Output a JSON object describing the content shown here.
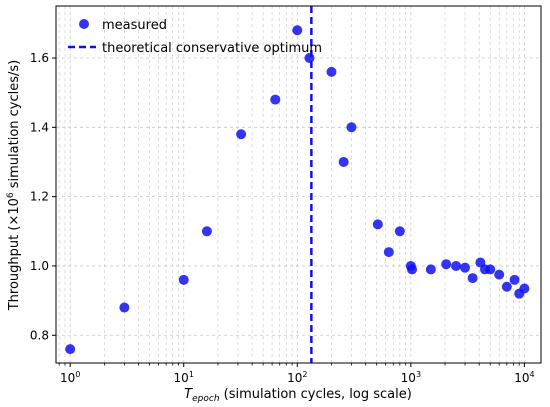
{
  "chart_data": {
    "type": "scatter",
    "x_scale": "log",
    "xlim": [
      0.75,
      14000
    ],
    "ylim": [
      0.72,
      1.75
    ],
    "grid": "both",
    "legend_placement": "top-left",
    "xlabel": {
      "main": "T",
      "sub": "epoch",
      "rest": " (simulation cycles, log scale)"
    },
    "ylabel": {
      "prefix": "Throughput (×10",
      "sup": "6",
      "suffix": " simulation cycles/s)"
    },
    "x_ticks": [
      {
        "value": 1,
        "base": "10",
        "exp": "0"
      },
      {
        "value": 10,
        "base": "10",
        "exp": "1"
      },
      {
        "value": 100,
        "base": "10",
        "exp": "2"
      },
      {
        "value": 1000,
        "base": "10",
        "exp": "3"
      },
      {
        "value": 10000,
        "base": "10",
        "exp": "4"
      }
    ],
    "y_ticks": [
      {
        "value": 0.8,
        "label": "0.8"
      },
      {
        "value": 1.0,
        "label": "1.0"
      },
      {
        "value": 1.2,
        "label": "1.2"
      },
      {
        "value": 1.4,
        "label": "1.4"
      },
      {
        "value": 1.6,
        "label": "1.6"
      }
    ],
    "series": [
      {
        "name": "measured",
        "kind": "scatter",
        "color": "#1010ee",
        "points": [
          {
            "x": 1,
            "y": 0.76
          },
          {
            "x": 3,
            "y": 0.88
          },
          {
            "x": 10,
            "y": 0.96
          },
          {
            "x": 16,
            "y": 1.1
          },
          {
            "x": 32,
            "y": 1.38
          },
          {
            "x": 64,
            "y": 1.48
          },
          {
            "x": 100,
            "y": 1.68
          },
          {
            "x": 128,
            "y": 1.6
          },
          {
            "x": 200,
            "y": 1.56
          },
          {
            "x": 256,
            "y": 1.3
          },
          {
            "x": 300,
            "y": 1.4
          },
          {
            "x": 512,
            "y": 1.12
          },
          {
            "x": 640,
            "y": 1.04
          },
          {
            "x": 800,
            "y": 1.1
          },
          {
            "x": 1000,
            "y": 1.0
          },
          {
            "x": 1024,
            "y": 0.99
          },
          {
            "x": 1500,
            "y": 0.99
          },
          {
            "x": 2048,
            "y": 1.005
          },
          {
            "x": 2500,
            "y": 1.0
          },
          {
            "x": 3000,
            "y": 0.995
          },
          {
            "x": 3500,
            "y": 0.965
          },
          {
            "x": 4096,
            "y": 1.01
          },
          {
            "x": 4500,
            "y": 0.99
          },
          {
            "x": 5000,
            "y": 0.99
          },
          {
            "x": 6000,
            "y": 0.975
          },
          {
            "x": 7000,
            "y": 0.94
          },
          {
            "x": 8192,
            "y": 0.96
          },
          {
            "x": 9000,
            "y": 0.92
          },
          {
            "x": 10000,
            "y": 0.935
          }
        ]
      },
      {
        "name": "theoretical conservative optimum",
        "kind": "vline",
        "color": "#1010ee",
        "x": 133
      }
    ]
  }
}
